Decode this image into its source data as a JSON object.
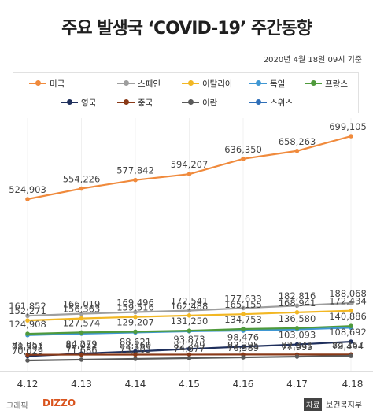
{
  "header": {
    "title": "주요 발생국 ‘COVID-19’ 주간동향",
    "date_note": "2020년 4월 18일 09시 기준"
  },
  "footer": {
    "credit_label": "그래픽",
    "credit_brand": "DIZZO",
    "source_label": "자료",
    "source_value": "보건복지부"
  },
  "chart_data": {
    "type": "line",
    "categories": [
      "4.12",
      "4.13",
      "4.14",
      "4.15",
      "4.16",
      "4.17",
      "4.18"
    ],
    "grid": false,
    "legend_position": "top",
    "series": [
      {
        "name": "미국",
        "color": "#f08a3c",
        "label_visible": true,
        "values": [
          524903,
          554226,
          577842,
          594207,
          636350,
          658263,
          699105
        ]
      },
      {
        "name": "스페인",
        "color": "#9e9e9e",
        "label_visible": true,
        "values": [
          161852,
          166019,
          169496,
          172541,
          177633,
          182816,
          188068
        ]
      },
      {
        "name": "이탈리아",
        "color": "#f2b724",
        "label_visible": true,
        "values": [
          152271,
          156363,
          159516,
          162488,
          165155,
          168941,
          172434
        ]
      },
      {
        "name": "독일",
        "color": "#3f97d3",
        "label_visible": false,
        "values": [
          122171,
          125098,
          127584,
          130072,
          131359,
          133830,
          137439
        ]
      },
      {
        "name": "프랑스",
        "color": "#4f9a3c",
        "label_visible": true,
        "values": [
          124908,
          127574,
          129207,
          131250,
          134753,
          136580,
          140886
        ]
      },
      {
        "name": "영국",
        "color": "#1f2f5c",
        "label_visible": true,
        "values": [
          78991,
          84279,
          88621,
          93873,
          98476,
          103093,
          108692
        ]
      },
      {
        "name": "중국",
        "color": "#8a3a18",
        "label_visible": true,
        "values": [
          81953,
          82052,
          82160,
          82249,
          82295,
          82341,
          82367
        ]
      },
      {
        "name": "이란",
        "color": "#5a5a5a",
        "label_visible": true,
        "values": [
          70029,
          71686,
          73303,
          74877,
          76389,
          77995,
          79494
        ]
      },
      {
        "name": "스위스",
        "color": "#2f6fb8",
        "label_visible": false,
        "values": [
          25107,
          25415,
          25688,
          25936,
          26336,
          26732,
          27078
        ]
      }
    ]
  }
}
